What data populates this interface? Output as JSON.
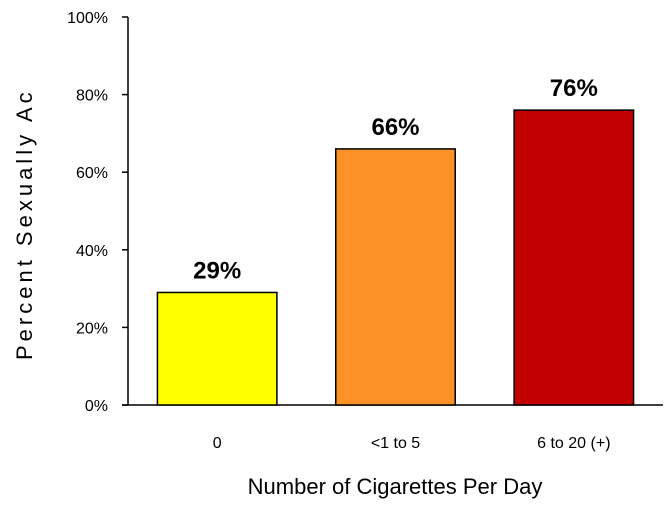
{
  "chart_data": {
    "type": "bar",
    "categories": [
      "0",
      "<1 to 5",
      "6 to 20 (+)"
    ],
    "values": [
      29,
      66,
      76
    ],
    "data_labels": [
      "29%",
      "66%",
      "76%"
    ],
    "xlabel": "Number of Cigarettes Per Day",
    "ylabel": "Percent Sexually Ac",
    "ylim": [
      0,
      100
    ],
    "yticks": [
      "0%",
      "20%",
      "40%",
      "60%",
      "80%",
      "100%"
    ],
    "grid": false,
    "legend": "none",
    "bar_colors": [
      "#ffff00",
      "#fb9127",
      "#c20000"
    ]
  }
}
